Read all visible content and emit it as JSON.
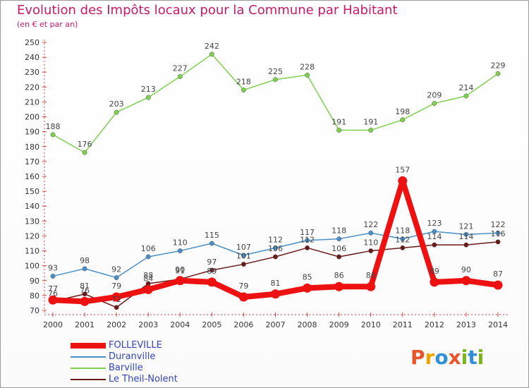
{
  "header": {
    "title": "Evolution des Impôts locaux pour la Commune par Habitant",
    "subtitle": "(en € et par an)"
  },
  "logo": {
    "text": "Proxiti",
    "colors": [
      "#e8542c",
      "#f2a300",
      "#2f8fd8",
      "#e8542c",
      "#7ab51d",
      "#2f8fd8",
      "#7ab51d"
    ]
  },
  "chart_data": {
    "type": "line",
    "title": "Evolution des Impôts locaux pour la Commune par Habitant",
    "subtitle": "(en € et par an)",
    "x": [
      2000,
      2001,
      2002,
      2003,
      2004,
      2005,
      2006,
      2007,
      2008,
      2009,
      2010,
      2011,
      2012,
      2013,
      2014
    ],
    "ylim": [
      70,
      250
    ],
    "yticks": [
      70,
      80,
      90,
      100,
      110,
      120,
      130,
      140,
      150,
      160,
      170,
      180,
      190,
      200,
      210,
      220,
      230,
      240,
      250
    ],
    "grid": false,
    "legend_position": "bottom-left",
    "series": [
      {
        "name": "Barville",
        "color": "#7ed04e",
        "values": [
          188,
          176,
          203,
          213,
          227,
          242,
          218,
          225,
          228,
          191,
          191,
          198,
          209,
          214,
          229
        ]
      },
      {
        "name": "Duranville",
        "color": "#4a90c8",
        "values": [
          93,
          98,
          92,
          106,
          110,
          115,
          107,
          112,
          117,
          118,
          122,
          118,
          123,
          121,
          122
        ]
      },
      {
        "name": "Le Theil-Nolent",
        "color": "#6b1a1a",
        "values": [
          76,
          81,
          72,
          88,
          91,
          97,
          101,
          106,
          112,
          106,
          110,
          112,
          114,
          114,
          116
        ]
      },
      {
        "name": "FOLLEVILLE",
        "color": "#ee1111",
        "values": [
          77,
          76,
          79,
          84,
          90,
          89,
          79,
          81,
          85,
          86,
          86,
          157,
          89,
          90,
          87
        ]
      }
    ],
    "legend": [
      "FOLLEVILLE",
      "Duranville",
      "Barville",
      "Le Theil-Nolent"
    ]
  }
}
